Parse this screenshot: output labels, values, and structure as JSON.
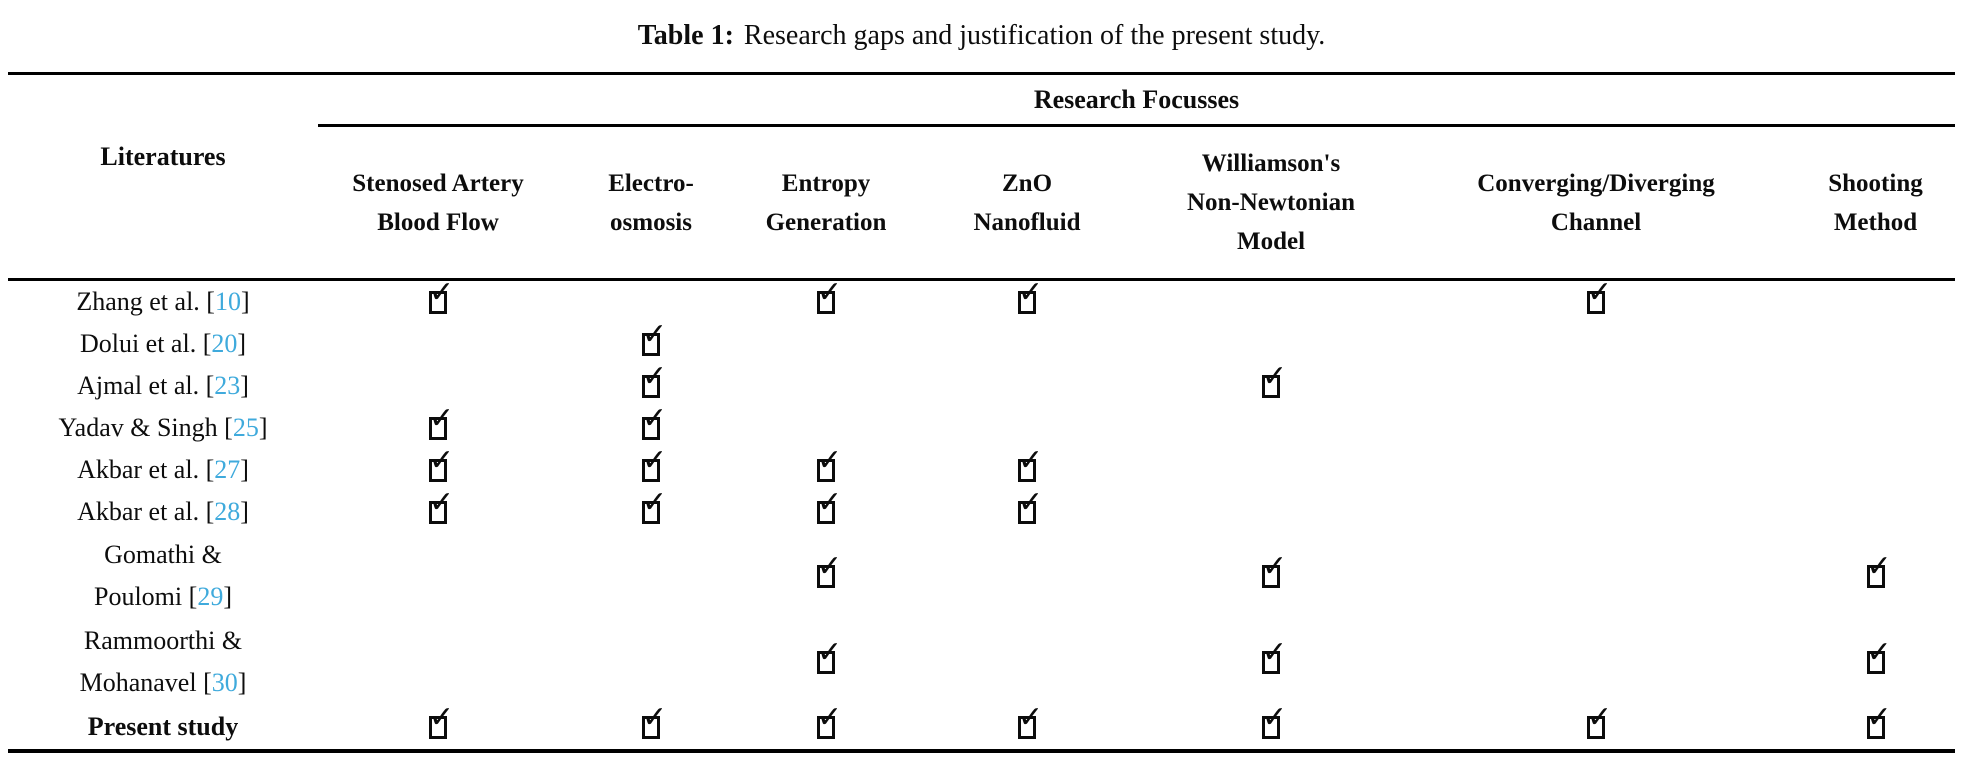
{
  "title": {
    "prefix": "Table 1:",
    "text": "Research gaps and justification of the present study."
  },
  "colors": {
    "accent_blue": "#3FAADC",
    "text": "#0d0d0d",
    "rule": "#000000"
  },
  "table": {
    "row_header": "Literatures",
    "group_header": "Research Focusses",
    "check_icon": "✓",
    "columns": [
      {
        "label": "Stenosed Artery\nBlood Flow"
      },
      {
        "label": "Electro-\nosmosis"
      },
      {
        "label": "Entropy\nGeneration"
      },
      {
        "label": "ZnO\nNanofluid"
      },
      {
        "label": "Williamson's\nNon-Newtonian\nModel"
      },
      {
        "label": "Converging/Diverging\nChannel"
      },
      {
        "label": "Shooting\nMethod"
      }
    ],
    "rows": [
      {
        "label_top": "",
        "label": "Zhang et al.",
        "open": " [",
        "ref": "10",
        "close": "]",
        "checks": [
          true,
          false,
          true,
          true,
          false,
          true,
          false
        ]
      },
      {
        "label_top": "",
        "label": "Dolui et al.",
        "open": " [",
        "ref": "20",
        "close": "]",
        "checks": [
          false,
          true,
          false,
          false,
          false,
          false,
          false
        ]
      },
      {
        "label_top": "",
        "label": "Ajmal et al.",
        "open": " [",
        "ref": "23",
        "close": "]",
        "checks": [
          false,
          true,
          false,
          false,
          true,
          false,
          false
        ]
      },
      {
        "label_top": "",
        "label": "Yadav & Singh",
        "open": " [",
        "ref": "25",
        "close": "]",
        "checks": [
          true,
          true,
          false,
          false,
          false,
          false,
          false
        ]
      },
      {
        "label_top": "",
        "label": "Akbar et al.",
        "open": " [",
        "ref": "27",
        "close": "]",
        "checks": [
          true,
          true,
          true,
          true,
          false,
          false,
          false
        ]
      },
      {
        "label_top": "",
        "label": "Akbar et al.",
        "open": " [",
        "ref": "28",
        "close": "]",
        "checks": [
          true,
          true,
          true,
          true,
          false,
          false,
          false
        ]
      },
      {
        "label_top": "Gomathi &",
        "label": "Poulomi",
        "open": " [",
        "ref": "29",
        "close": "]",
        "checks": [
          false,
          false,
          true,
          false,
          true,
          false,
          true
        ]
      },
      {
        "label_top": "Rammoorthi &",
        "label": "Mohanavel",
        "open": " [",
        "ref": "30",
        "close": "]",
        "checks": [
          false,
          false,
          true,
          false,
          true,
          false,
          true
        ]
      },
      {
        "label_top": "",
        "label": "Present study",
        "open": "",
        "ref": "",
        "close": "",
        "checks": [
          true,
          true,
          true,
          true,
          true,
          true,
          true
        ]
      }
    ]
  }
}
